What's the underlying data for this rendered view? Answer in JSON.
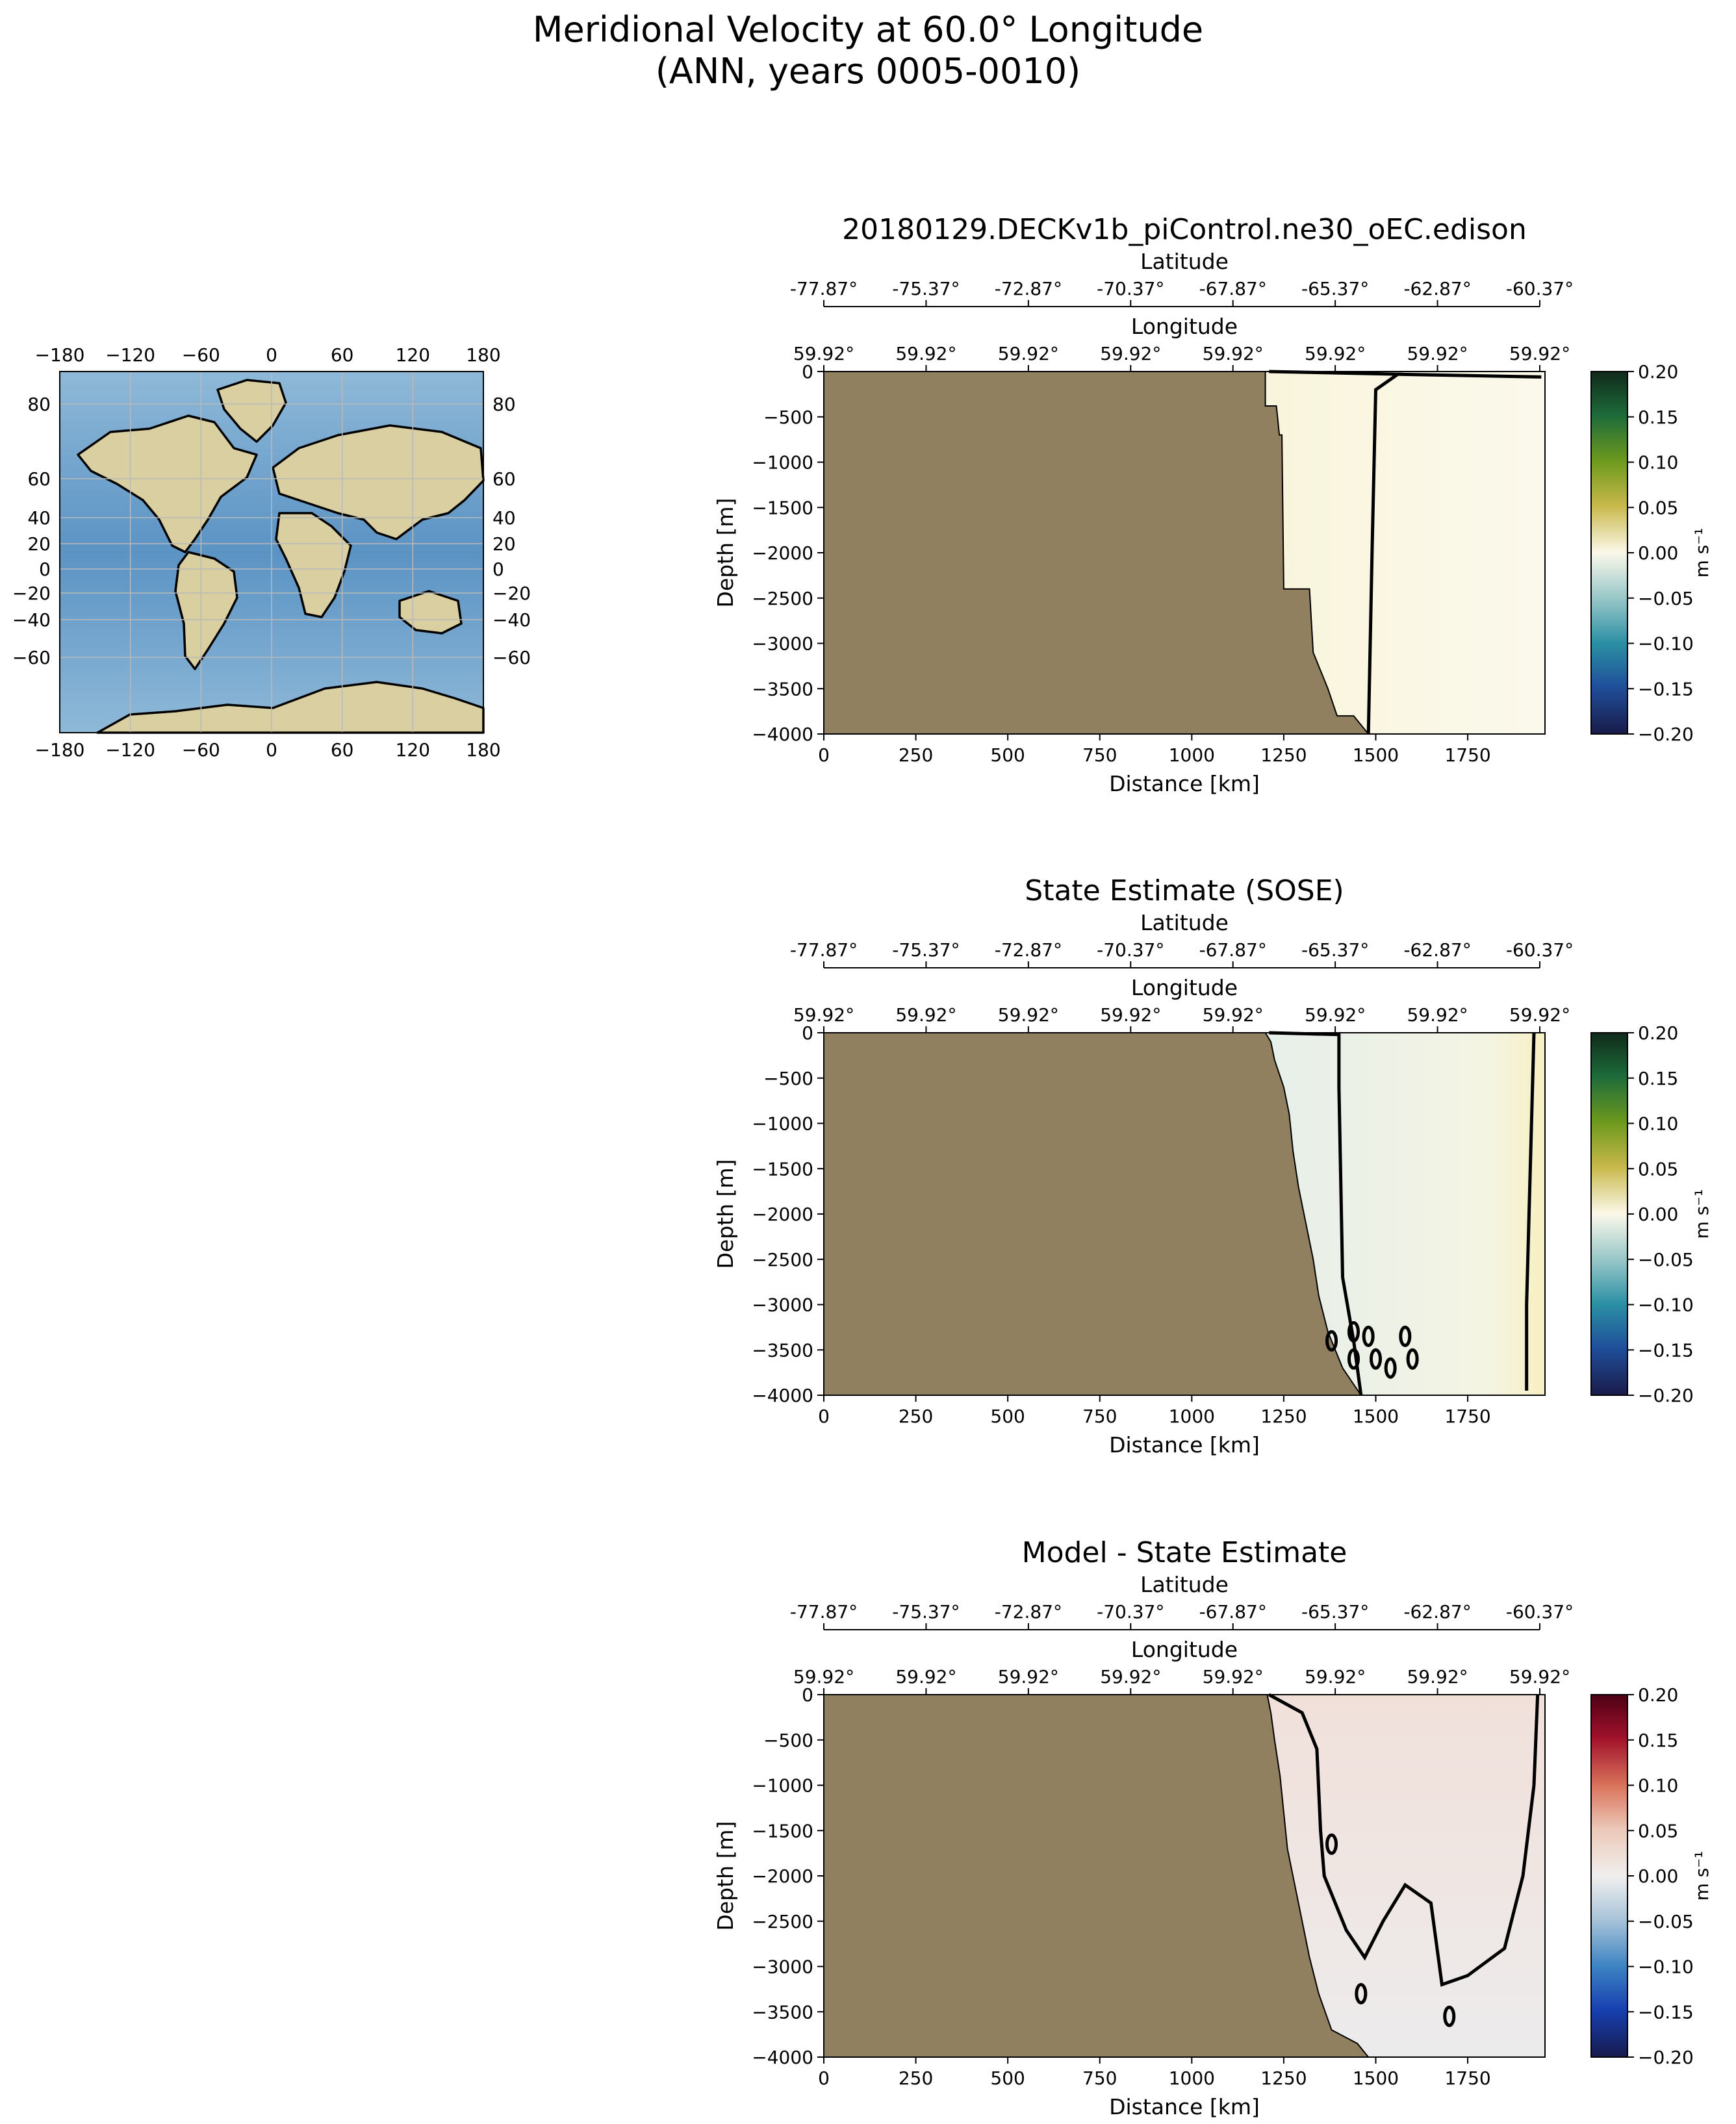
{
  "figure": {
    "title_line1": "Meridional Velocity at 60.0° Longitude",
    "title_line2": "(ANN, years 0005-0010)"
  },
  "map_inset": {
    "lon_ticks": [
      "−180",
      "−120",
      "−60",
      "0",
      "60",
      "120",
      "180"
    ],
    "lat_ticks_left": [
      "80",
      "60",
      "40",
      "20",
      "0",
      "−20",
      "−40",
      "−60"
    ],
    "lat_ticks_right": [
      "80",
      "60",
      "40",
      "20",
      "0",
      "−20",
      "−40",
      "−60"
    ],
    "ocean_color": "#6fa4cf",
    "land_color": "#d9cfa0"
  },
  "chart_data": [
    {
      "type": "heatmap",
      "title": "20180129.DECKv1b_piControl.ne30_oEC.edison",
      "xlabel": "Distance [km]",
      "ylabel": "Depth [m]",
      "xlim": [
        0,
        1960
      ],
      "ylim": [
        -4000,
        0
      ],
      "x_ticks": [
        "0",
        "250",
        "500",
        "750",
        "1000",
        "1250",
        "1500",
        "1750"
      ],
      "y_ticks": [
        "0",
        "−500",
        "−1000",
        "−1500",
        "−2000",
        "−2500",
        "−3000",
        "−3500",
        "−4000"
      ],
      "top_axis_1": {
        "label": "Latitude",
        "ticks": [
          "-77.87°",
          "-75.37°",
          "-72.87°",
          "-70.37°",
          "-67.87°",
          "-65.37°",
          "-62.87°",
          "-60.37°"
        ]
      },
      "top_axis_2": {
        "label": "Longitude",
        "ticks": [
          "59.92°",
          "59.92°",
          "59.92°",
          "59.92°",
          "59.92°",
          "59.92°",
          "59.92°",
          "59.92°"
        ]
      },
      "colorbar": {
        "label": "m s⁻¹",
        "range": [
          -0.2,
          0.2
        ],
        "ticks": [
          "0.20",
          "0.15",
          "0.10",
          "0.05",
          "0.00",
          "−0.05",
          "−0.10",
          "−0.15",
          "−0.20"
        ],
        "colormap": "diverging-green-yellow-blue"
      },
      "land_color": "#908060",
      "shelf_edge_km": [
        [
          0,
          1200
        ],
        [
          -400,
          1210
        ],
        [
          -400,
          1240
        ],
        [
          -2400,
          1250
        ],
        [
          -2400,
          1320
        ],
        [
          -3100,
          1330
        ],
        [
          -3300,
          1360
        ],
        [
          -3500,
          1380
        ],
        [
          -3800,
          1400
        ],
        [
          -4000,
          1480
        ]
      ],
      "field": "weak positive (northward) flow near shelf, near zero offshore"
    },
    {
      "type": "heatmap",
      "title": "State Estimate (SOSE)",
      "xlabel": "Distance [km]",
      "ylabel": "Depth [m]",
      "xlim": [
        0,
        1960
      ],
      "ylim": [
        -4000,
        0
      ],
      "x_ticks": [
        "0",
        "250",
        "500",
        "750",
        "1000",
        "1250",
        "1500",
        "1750"
      ],
      "y_ticks": [
        "0",
        "−500",
        "−1000",
        "−1500",
        "−2000",
        "−2500",
        "−3000",
        "−3500",
        "−4000"
      ],
      "top_axis_1": {
        "label": "Latitude",
        "ticks": [
          "-77.87°",
          "-75.37°",
          "-72.87°",
          "-70.37°",
          "-67.87°",
          "-65.37°",
          "-62.87°",
          "-60.37°"
        ]
      },
      "top_axis_2": {
        "label": "Longitude",
        "ticks": [
          "59.92°",
          "59.92°",
          "59.92°",
          "59.92°",
          "59.92°",
          "59.92°",
          "59.92°",
          "59.92°"
        ]
      },
      "colorbar": {
        "label": "m s⁻¹",
        "range": [
          -0.2,
          0.2
        ],
        "ticks": [
          "0.20",
          "0.15",
          "0.10",
          "0.05",
          "0.00",
          "−0.05",
          "−0.10",
          "−0.15",
          "−0.20"
        ],
        "colormap": "diverging-green-yellow-blue"
      },
      "land_color": "#908060",
      "field": "weak positive flow near shelf and at northern edge, weak negative in mid-section"
    },
    {
      "type": "heatmap",
      "title": "Model - State Estimate",
      "xlabel": "Distance [km]",
      "ylabel": "Depth [m]",
      "xlim": [
        0,
        1960
      ],
      "ylim": [
        -4000,
        0
      ],
      "x_ticks": [
        "0",
        "250",
        "500",
        "750",
        "1000",
        "1250",
        "1500",
        "1750"
      ],
      "y_ticks": [
        "0",
        "−500",
        "−1000",
        "−1500",
        "−2000",
        "−2500",
        "−3000",
        "−3500",
        "−4000"
      ],
      "top_axis_1": {
        "label": "Latitude",
        "ticks": [
          "-77.87°",
          "-75.37°",
          "-72.87°",
          "-70.37°",
          "-67.87°",
          "-65.37°",
          "-62.87°",
          "-60.37°"
        ]
      },
      "top_axis_2": {
        "label": "Longitude",
        "ticks": [
          "59.92°",
          "59.92°",
          "59.92°",
          "59.92°",
          "59.92°",
          "59.92°",
          "59.92°",
          "59.92°"
        ]
      },
      "colorbar": {
        "label": "m s⁻¹",
        "range": [
          -0.2,
          0.2
        ],
        "ticks": [
          "0.20",
          "0.15",
          "0.10",
          "0.05",
          "0.00",
          "−0.05",
          "−0.10",
          "−0.15",
          "−0.20"
        ],
        "colormap": "diverging-red-white-blue"
      },
      "land_color": "#908060",
      "field": "weak positive difference in upper water column offshore"
    }
  ]
}
